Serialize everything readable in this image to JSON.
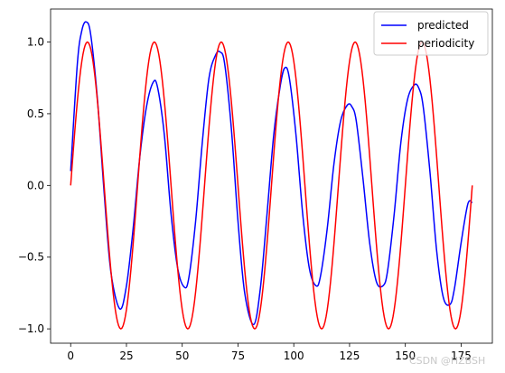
{
  "chart_data": {
    "type": "line",
    "title": "",
    "xlabel": "",
    "ylabel": "",
    "xlim": [
      -9,
      189
    ],
    "ylim": [
      -1.1,
      1.23
    ],
    "xticks": [
      0,
      25,
      50,
      75,
      100,
      125,
      150,
      175
    ],
    "yticks": [
      -1.0,
      -0.5,
      0.0,
      0.5,
      1.0
    ],
    "xtick_labels": [
      "0",
      "25",
      "50",
      "75",
      "100",
      "125",
      "150",
      "175"
    ],
    "ytick_labels": [
      "−1.0",
      "−0.5",
      "0.0",
      "0.5",
      "1.0"
    ],
    "grid": false,
    "legend_position": "top-right",
    "series": [
      {
        "name": "predicted",
        "color": "#0000ff",
        "x": [
          0,
          3,
          5,
          7,
          9,
          12,
          15,
          18,
          22,
          25,
          28,
          31,
          34,
          37,
          39,
          42,
          45,
          48,
          51,
          53,
          56,
          59,
          62,
          65,
          67,
          69,
          72,
          75,
          78,
          82,
          85,
          88,
          91,
          94,
          96,
          98,
          101,
          104,
          107,
          110,
          112,
          115,
          118,
          121,
          124,
          126,
          128,
          131,
          134,
          137,
          140,
          142,
          145,
          148,
          151,
          154,
          156,
          158,
          161,
          164,
          167,
          170,
          172,
          175,
          178,
          180
        ],
        "y": [
          0.1,
          0.85,
          1.08,
          1.14,
          1.05,
          0.6,
          -0.05,
          -0.6,
          -0.86,
          -0.7,
          -0.3,
          0.2,
          0.55,
          0.72,
          0.68,
          0.35,
          -0.2,
          -0.58,
          -0.71,
          -0.64,
          -0.25,
          0.3,
          0.75,
          0.91,
          0.93,
          0.85,
          0.4,
          -0.25,
          -0.75,
          -0.97,
          -0.72,
          -0.2,
          0.35,
          0.7,
          0.82,
          0.75,
          0.35,
          -0.2,
          -0.58,
          -0.7,
          -0.63,
          -0.3,
          0.15,
          0.45,
          0.56,
          0.55,
          0.45,
          0.05,
          -0.4,
          -0.67,
          -0.7,
          -0.6,
          -0.2,
          0.3,
          0.6,
          0.7,
          0.68,
          0.55,
          0.1,
          -0.45,
          -0.78,
          -0.83,
          -0.72,
          -0.4,
          -0.13,
          -0.12
        ]
      },
      {
        "name": "periodicity",
        "color": "#ff0000",
        "x_start": 0,
        "x_end": 180,
        "period": 30,
        "note_formula": "sin(2*pi*x/period)"
      }
    ]
  },
  "legend": {
    "items": [
      {
        "label": "predicted",
        "color": "#0000ff"
      },
      {
        "label": "periodicity",
        "color": "#ff0000"
      }
    ]
  },
  "watermark": "CSDN @HZBSH"
}
